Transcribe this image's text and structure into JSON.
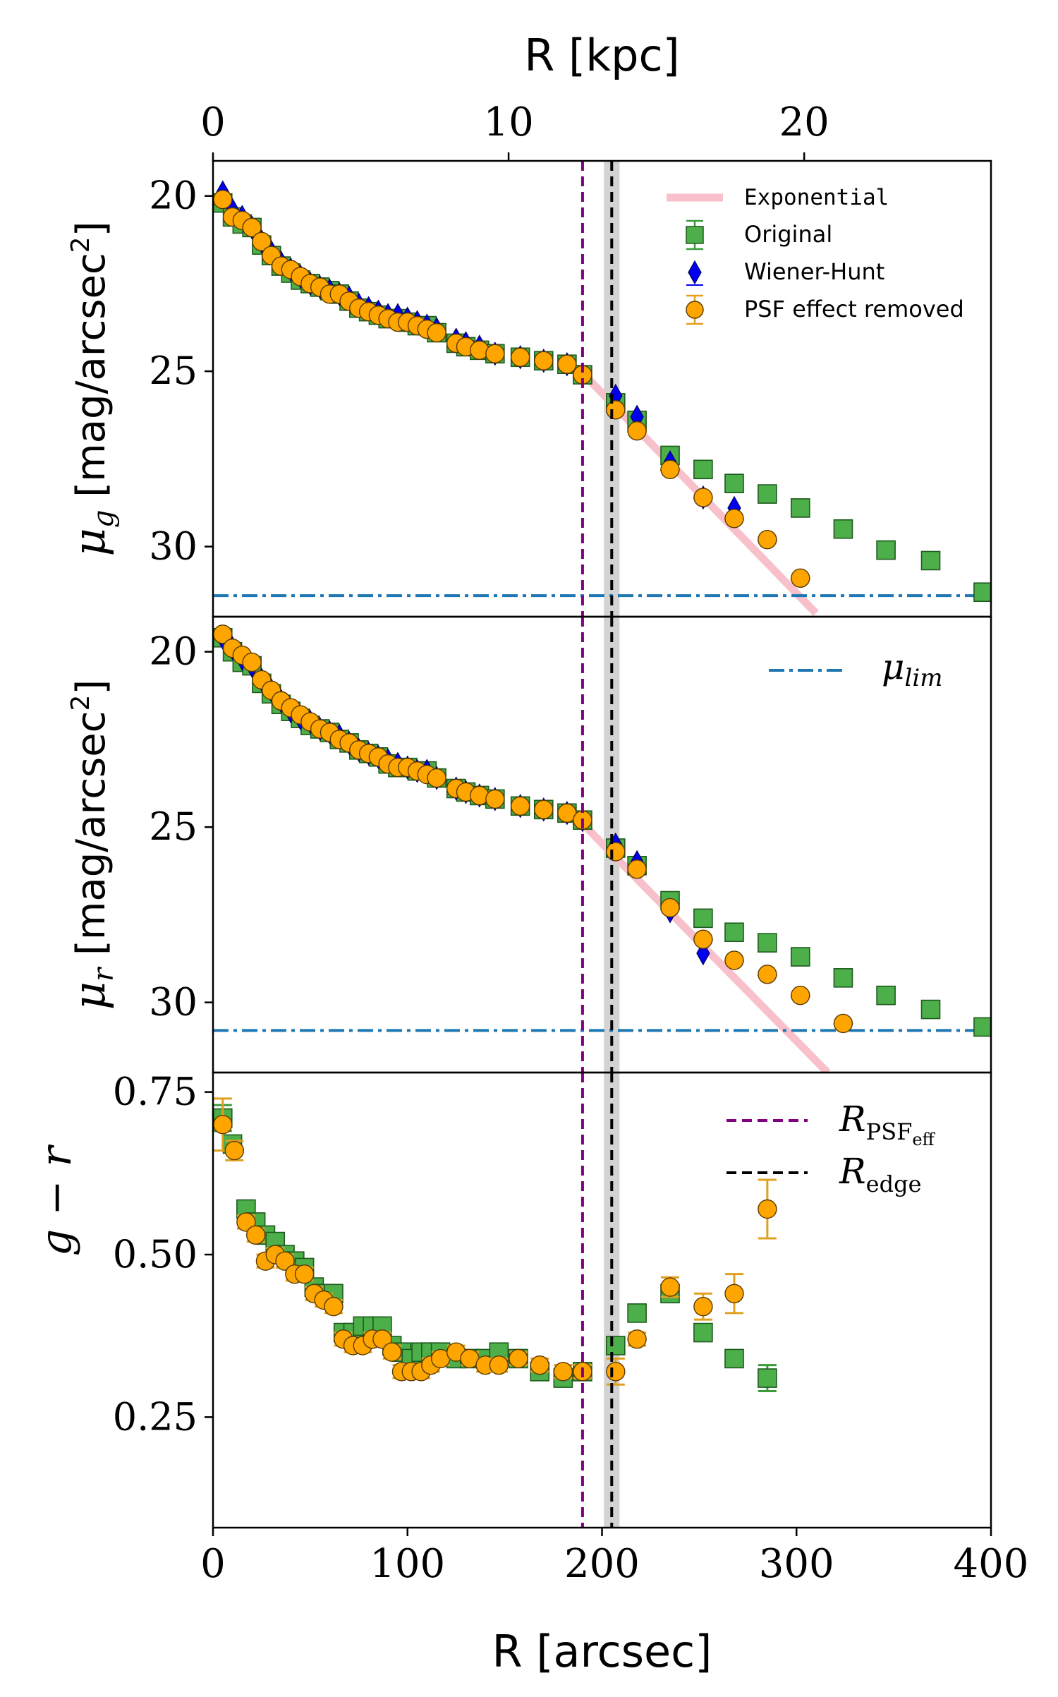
{
  "chart_data": {
    "type": "scatter",
    "top_axis": {
      "label": "R [kpc]",
      "ticks": [
        "0",
        "10",
        "20"
      ],
      "tick_values": [
        0,
        10,
        20
      ],
      "range": [
        0,
        26.32
      ]
    },
    "bottom_axis": {
      "label": "R [arcsec]",
      "ticks": [
        "0",
        "100",
        "200",
        "300",
        "400"
      ],
      "tick_values": [
        0,
        100,
        200,
        300,
        400
      ],
      "range": [
        0,
        400
      ]
    },
    "colors": {
      "original": "#4daf4a",
      "wiener": "#0000ee",
      "psf_removed": "#ffa500",
      "exponential": "#f7c0cb",
      "limit": "#1f77b4",
      "r_psf": "#800080",
      "r_edge": "#000000",
      "edge_band": "#c8c8c8"
    },
    "vertical_lines": {
      "r_psf_eff": 190,
      "r_edge": 205,
      "edge_band": [
        201,
        209
      ]
    },
    "panels": [
      {
        "id": "mu_g",
        "ylabel": "μ_g [mag/arcsec²]",
        "ylabel_prefix": "μ",
        "ylabel_sub": "g",
        "ylabel_unit": " [mag/arcsec",
        "ylabel_sup": "2",
        "ylabel_close": "]",
        "ylim": [
          19,
          32
        ],
        "inverted": true,
        "yticks": [
          "20",
          "25",
          "30"
        ],
        "ytick_values": [
          20,
          25,
          30
        ],
        "mu_lim": 31.4,
        "exponential": {
          "x": [
            190,
            310
          ],
          "y": [
            25.05,
            31.9
          ]
        },
        "legend": [
          "Exponential",
          "Original",
          "Wiener-Hunt",
          "PSF effect removed"
        ],
        "series": [
          {
            "name": "Original",
            "x": [
              5,
              10,
              15,
              20,
              25,
              30,
              35,
              40,
              45,
              50,
              55,
              60,
              65,
              70,
              75,
              80,
              85,
              90,
              95,
              100,
              105,
              110,
              115,
              125,
              130,
              137,
              145,
              158,
              170,
              182,
              190,
              207,
              218,
              235,
              252,
              268,
              285,
              302,
              324,
              346,
              369,
              396
            ],
            "y": [
              20.2,
              20.6,
              20.8,
              20.9,
              21.4,
              21.7,
              22.0,
              22.2,
              22.4,
              22.5,
              22.6,
              22.7,
              22.8,
              23.0,
              23.2,
              23.3,
              23.4,
              23.5,
              23.5,
              23.6,
              23.7,
              23.7,
              23.9,
              24.2,
              24.3,
              24.4,
              24.5,
              24.6,
              24.7,
              24.8,
              25.1,
              25.9,
              26.4,
              27.4,
              27.8,
              28.2,
              28.5,
              28.9,
              29.5,
              30.1,
              30.4,
              31.3
            ]
          },
          {
            "name": "Wiener-Hunt",
            "x": [
              5,
              10,
              15,
              20,
              25,
              30,
              35,
              40,
              45,
              50,
              55,
              60,
              65,
              70,
              75,
              80,
              85,
              90,
              95,
              100,
              105,
              110,
              115,
              125,
              130,
              137,
              145,
              158,
              170,
              182,
              190,
              207,
              218,
              235,
              252,
              268
            ],
            "y": [
              19.9,
              20.4,
              20.6,
              20.9,
              21.3,
              21.6,
              21.9,
              22.1,
              22.3,
              22.5,
              22.6,
              22.7,
              22.8,
              22.9,
              23.1,
              23.2,
              23.3,
              23.4,
              23.4,
              23.5,
              23.6,
              23.7,
              23.8,
              24.1,
              24.2,
              24.3,
              24.5,
              24.6,
              24.7,
              24.8,
              25.1,
              25.7,
              26.3,
              27.6,
              28.6,
              28.9
            ]
          },
          {
            "name": "PSF effect removed",
            "x": [
              5,
              10,
              15,
              20,
              25,
              30,
              35,
              40,
              45,
              50,
              55,
              60,
              65,
              70,
              75,
              80,
              85,
              90,
              95,
              100,
              105,
              110,
              115,
              125,
              130,
              137,
              145,
              158,
              170,
              182,
              190,
              207,
              218,
              235,
              252,
              268,
              285,
              302
            ],
            "y": [
              20.1,
              20.6,
              20.7,
              20.9,
              21.3,
              21.7,
              22.0,
              22.1,
              22.3,
              22.5,
              22.6,
              22.8,
              22.8,
              23.0,
              23.2,
              23.3,
              23.4,
              23.5,
              23.6,
              23.6,
              23.7,
              23.8,
              23.9,
              24.2,
              24.3,
              24.4,
              24.5,
              24.6,
              24.7,
              24.8,
              25.1,
              26.1,
              26.7,
              27.8,
              28.6,
              29.2,
              29.8,
              30.9
            ]
          }
        ]
      },
      {
        "id": "mu_r",
        "ylabel": "μ_r [mag/arcsec²]",
        "ylabel_prefix": "μ",
        "ylabel_sub": "r",
        "ylabel_unit": " [mag/arcsec",
        "ylabel_sup": "2",
        "ylabel_close": "]",
        "ylim": [
          19,
          32
        ],
        "inverted": true,
        "yticks": [
          "20",
          "25",
          "30"
        ],
        "ytick_values": [
          20,
          25,
          30
        ],
        "mu_lim": 30.8,
        "exponential": {
          "x": [
            190,
            316
          ],
          "y": [
            24.9,
            32.0
          ]
        },
        "legend_label": "μ_lim",
        "legend_prefix": "μ",
        "legend_sub": "lim",
        "series": [
          {
            "name": "Original",
            "x": [
              5,
              10,
              15,
              20,
              25,
              30,
              35,
              40,
              45,
              50,
              55,
              60,
              65,
              70,
              75,
              80,
              85,
              90,
              95,
              100,
              105,
              110,
              115,
              125,
              130,
              137,
              145,
              158,
              170,
              182,
              190,
              207,
              218,
              235,
              252,
              268,
              285,
              302,
              324,
              346,
              369,
              396
            ],
            "y": [
              19.6,
              20.0,
              20.3,
              20.4,
              20.9,
              21.2,
              21.5,
              21.7,
              21.9,
              22.1,
              22.2,
              22.3,
              22.5,
              22.6,
              22.8,
              22.9,
              23.0,
              23.2,
              23.3,
              23.3,
              23.4,
              23.4,
              23.6,
              23.9,
              24.0,
              24.1,
              24.2,
              24.4,
              24.5,
              24.6,
              24.8,
              25.6,
              26.1,
              27.1,
              27.6,
              28.0,
              28.3,
              28.7,
              29.3,
              29.8,
              30.2,
              30.7
            ]
          },
          {
            "name": "Wiener-Hunt",
            "x": [
              5,
              10,
              15,
              20,
              25,
              30,
              35,
              40,
              45,
              50,
              55,
              60,
              65,
              70,
              75,
              80,
              85,
              90,
              95,
              100,
              105,
              110,
              115,
              125,
              130,
              137,
              145,
              158,
              170,
              182,
              190,
              207,
              218,
              235,
              252
            ],
            "y": [
              19.6,
              19.9,
              20.2,
              20.4,
              20.8,
              21.1,
              21.4,
              21.7,
              21.9,
              22.0,
              22.2,
              22.3,
              22.4,
              22.6,
              22.8,
              22.9,
              23.0,
              23.1,
              23.2,
              23.3,
              23.4,
              23.4,
              23.6,
              23.9,
              24.0,
              24.1,
              24.2,
              24.4,
              24.5,
              24.6,
              24.8,
              25.5,
              26.0,
              27.4,
              28.6
            ]
          },
          {
            "name": "PSF effect removed",
            "x": [
              5,
              10,
              15,
              20,
              25,
              30,
              35,
              40,
              45,
              50,
              55,
              60,
              65,
              70,
              75,
              80,
              85,
              90,
              95,
              100,
              105,
              110,
              115,
              125,
              130,
              137,
              145,
              158,
              170,
              182,
              190,
              207,
              218,
              235,
              252,
              268,
              285,
              302,
              324
            ],
            "y": [
              19.5,
              19.9,
              20.1,
              20.3,
              20.8,
              21.1,
              21.4,
              21.6,
              21.8,
              22.0,
              22.2,
              22.3,
              22.5,
              22.6,
              22.8,
              22.9,
              23.0,
              23.2,
              23.3,
              23.3,
              23.4,
              23.5,
              23.6,
              23.9,
              24.0,
              24.1,
              24.2,
              24.4,
              24.5,
              24.6,
              24.8,
              25.7,
              26.2,
              27.3,
              28.2,
              28.8,
              29.2,
              29.8,
              30.6
            ]
          }
        ]
      },
      {
        "id": "g_minus_r",
        "ylabel": "g − r",
        "ylim": [
          0.08,
          0.78
        ],
        "inverted": false,
        "yticks": [
          "0.25",
          "0.50",
          "0.75"
        ],
        "ytick_values": [
          0.25,
          0.5,
          0.75
        ],
        "legend": [
          "R_PSFeff",
          "R_edge"
        ],
        "series": [
          {
            "name": "Original",
            "x": [
              5,
              10,
              17,
              22,
              27,
              32,
              37,
              42,
              47,
              52,
              57,
              62,
              67,
              72,
              77,
              82,
              87,
              92,
              97,
              102,
              107,
              112,
              117,
              125,
              132,
              140,
              147,
              157,
              168,
              180,
              190,
              207,
              218,
              235,
              252,
              268,
              285
            ],
            "y": [
              0.71,
              0.67,
              0.57,
              0.55,
              0.53,
              0.52,
              0.5,
              0.49,
              0.48,
              0.45,
              0.44,
              0.44,
              0.38,
              0.38,
              0.39,
              0.39,
              0.39,
              0.36,
              0.35,
              0.34,
              0.35,
              0.35,
              0.35,
              0.34,
              0.34,
              0.34,
              0.35,
              0.34,
              0.32,
              0.31,
              0.32,
              0.36,
              0.41,
              0.44,
              0.38,
              0.34,
              0.31
            ],
            "err": [
              0.02,
              0.01,
              0.01,
              0.01,
              0.01,
              0.01,
              0.01,
              0.01,
              0.01,
              0.01,
              0.01,
              0.01,
              0.01,
              0.01,
              0.01,
              0.01,
              0.01,
              0.01,
              0.01,
              0.01,
              0.01,
              0.01,
              0.01,
              0.01,
              0.01,
              0.01,
              0.01,
              0.01,
              0.01,
              0.01,
              0.01,
              0.01,
              0.01,
              0.01,
              0.01,
              0.01,
              0.02
            ]
          },
          {
            "name": "PSF effect removed",
            "x": [
              5,
              11,
              17,
              22,
              27,
              32,
              37,
              42,
              47,
              52,
              57,
              62,
              67,
              72,
              77,
              82,
              87,
              92,
              97,
              102,
              107,
              112,
              117,
              125,
              132,
              140,
              147,
              157,
              168,
              180,
              190,
              207,
              218,
              235,
              252,
              268,
              285
            ],
            "y": [
              0.7,
              0.66,
              0.55,
              0.53,
              0.49,
              0.5,
              0.49,
              0.47,
              0.47,
              0.44,
              0.43,
              0.42,
              0.37,
              0.36,
              0.36,
              0.37,
              0.37,
              0.35,
              0.32,
              0.32,
              0.32,
              0.33,
              0.34,
              0.35,
              0.34,
              0.33,
              0.33,
              0.34,
              0.33,
              0.32,
              0.32,
              0.32,
              0.37,
              0.45,
              0.42,
              0.44,
              0.57
            ],
            "err": [
              0.04,
              0.015,
              0.01,
              0.01,
              0.01,
              0.01,
              0.01,
              0.01,
              0.01,
              0.01,
              0.01,
              0.01,
              0.01,
              0.01,
              0.01,
              0.01,
              0.01,
              0.01,
              0.01,
              0.01,
              0.01,
              0.01,
              0.01,
              0.01,
              0.01,
              0.01,
              0.01,
              0.01,
              0.01,
              0.01,
              0.01,
              0.02,
              0.01,
              0.015,
              0.02,
              0.03,
              0.045
            ]
          }
        ]
      }
    ]
  }
}
